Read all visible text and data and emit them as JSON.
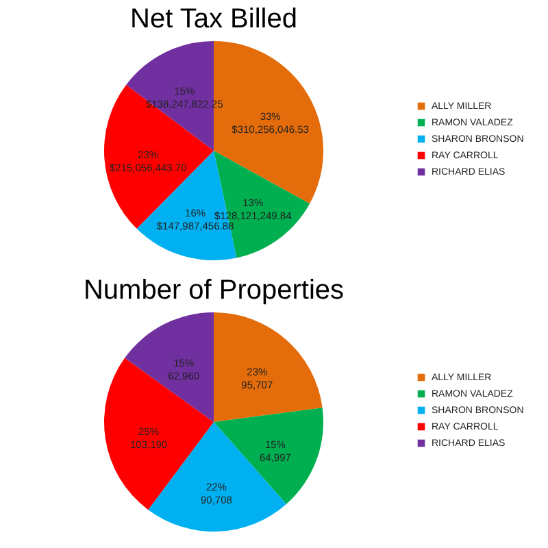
{
  "chart_data": [
    {
      "type": "pie",
      "title": "Net Tax Billed",
      "categories": [
        "ALLY MILLER",
        "RAMON VALADEZ",
        "SHARON BRONSON",
        "RAY CARROLL",
        "RICHARD ELIAS"
      ],
      "values": [
        310256046.53,
        128121249.84,
        147987456.88,
        215056443.7,
        138247822.25
      ],
      "colors": [
        "#e46c0a",
        "#00b050",
        "#00b0f0",
        "#ff0000",
        "#7030a0"
      ],
      "value_labels": [
        "33%\n$310,256,046.53",
        "13%\n$128,121,249.84",
        "16%\n$147,987,456.88",
        "23%\n$215,056,443.70",
        "15%\n$138,247,822.25"
      ],
      "legend": "right"
    },
    {
      "type": "pie",
      "title": "Number of Properties",
      "categories": [
        "ALLY MILLER",
        "RAMON VALADEZ",
        "SHARON BRONSON",
        "RAY CARROLL",
        "RICHARD ELIAS"
      ],
      "values": [
        95707,
        64997,
        90708,
        103190,
        62960
      ],
      "colors": [
        "#e46c0a",
        "#00b050",
        "#00b0f0",
        "#ff0000",
        "#7030a0"
      ],
      "value_labels": [
        "23%\n95,707",
        "15%\n64,997",
        "22%\n90,708",
        "25%\n103,190",
        "15%\n62,960"
      ],
      "legend": "right"
    }
  ]
}
